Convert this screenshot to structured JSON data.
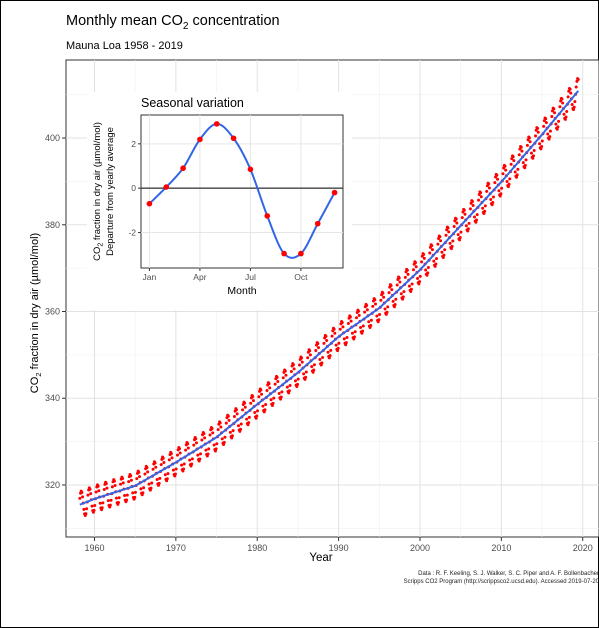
{
  "chart_data": [
    {
      "type": "scatter",
      "title_prefix": "Monthly mean CO",
      "title_sub": "2",
      "title_suffix": " concentration",
      "subtitle": "Mauna Loa 1958 - 2019",
      "xlabel": "Year",
      "ylabel_prefix": "CO",
      "ylabel_sub": "2",
      "ylabel_suffix": " fraction in dry air (µmol/mol)",
      "xlim": [
        1956.5,
        2022
      ],
      "ylim": [
        308,
        418
      ],
      "x_ticks": [
        1960,
        1970,
        1980,
        1990,
        2000,
        2010,
        2020
      ],
      "y_ticks": [
        320,
        340,
        360,
        380,
        400
      ],
      "grid": true,
      "series": [
        {
          "name": "",
          "kind": "monthly_points",
          "color": "#ff0000",
          "x_start": 1958.2,
          "x_end": 2019.5,
          "trend_x": [
            1958,
            1960,
            1965,
            1970,
            1975,
            1980,
            1985,
            1990,
            1995,
            2000,
            2005,
            2010,
            2015,
            2019.5
          ],
          "trend_y": [
            315.3,
            316.8,
            319.8,
            325.2,
            331.0,
            338.6,
            345.9,
            354.2,
            360.8,
            369.6,
            379.8,
            389.9,
            400.8,
            411.0
          ],
          "seasonal_amplitude": 3.0
        },
        {
          "name": "",
          "kind": "trend_line",
          "color": "#3366e6"
        }
      ],
      "credits": [
        "Data : R. F. Keeling, S. J. Walker, S. C. Piper and A. F. Bollenbacher",
        "Scripps CO2 Program (http://scrippsco2.ucsd.edu). Accessed 2019-07-20"
      ]
    },
    {
      "type": "line",
      "title": "Seasonal variation",
      "xlabel": "Month",
      "ylabel_line1_prefix": "CO",
      "ylabel_line1_sub": "2",
      "ylabel_line1_suffix": " fraction in dry air (µmol/mol)",
      "ylabel_line2": "Departure from yearly average",
      "x_ticks": [
        1,
        4,
        7,
        10
      ],
      "x_tick_labels": [
        "Jan",
        "Apr",
        "Jul",
        "Oct"
      ],
      "y_ticks": [
        -2,
        0,
        2
      ],
      "xlim": [
        0.5,
        12.5
      ],
      "ylim": [
        -3.6,
        3.3
      ],
      "grid": true,
      "series": [
        {
          "name": "",
          "kind": "points",
          "color": "#ff0000",
          "x": [
            1,
            2,
            3,
            4,
            5,
            6,
            7,
            8,
            9,
            10,
            11,
            12
          ],
          "y": [
            -0.7,
            0.05,
            0.9,
            2.2,
            2.9,
            2.25,
            0.85,
            -1.25,
            -2.95,
            -2.95,
            -1.6,
            -0.2
          ]
        },
        {
          "name": "",
          "kind": "smooth_line",
          "color": "#3366e6"
        }
      ]
    }
  ]
}
